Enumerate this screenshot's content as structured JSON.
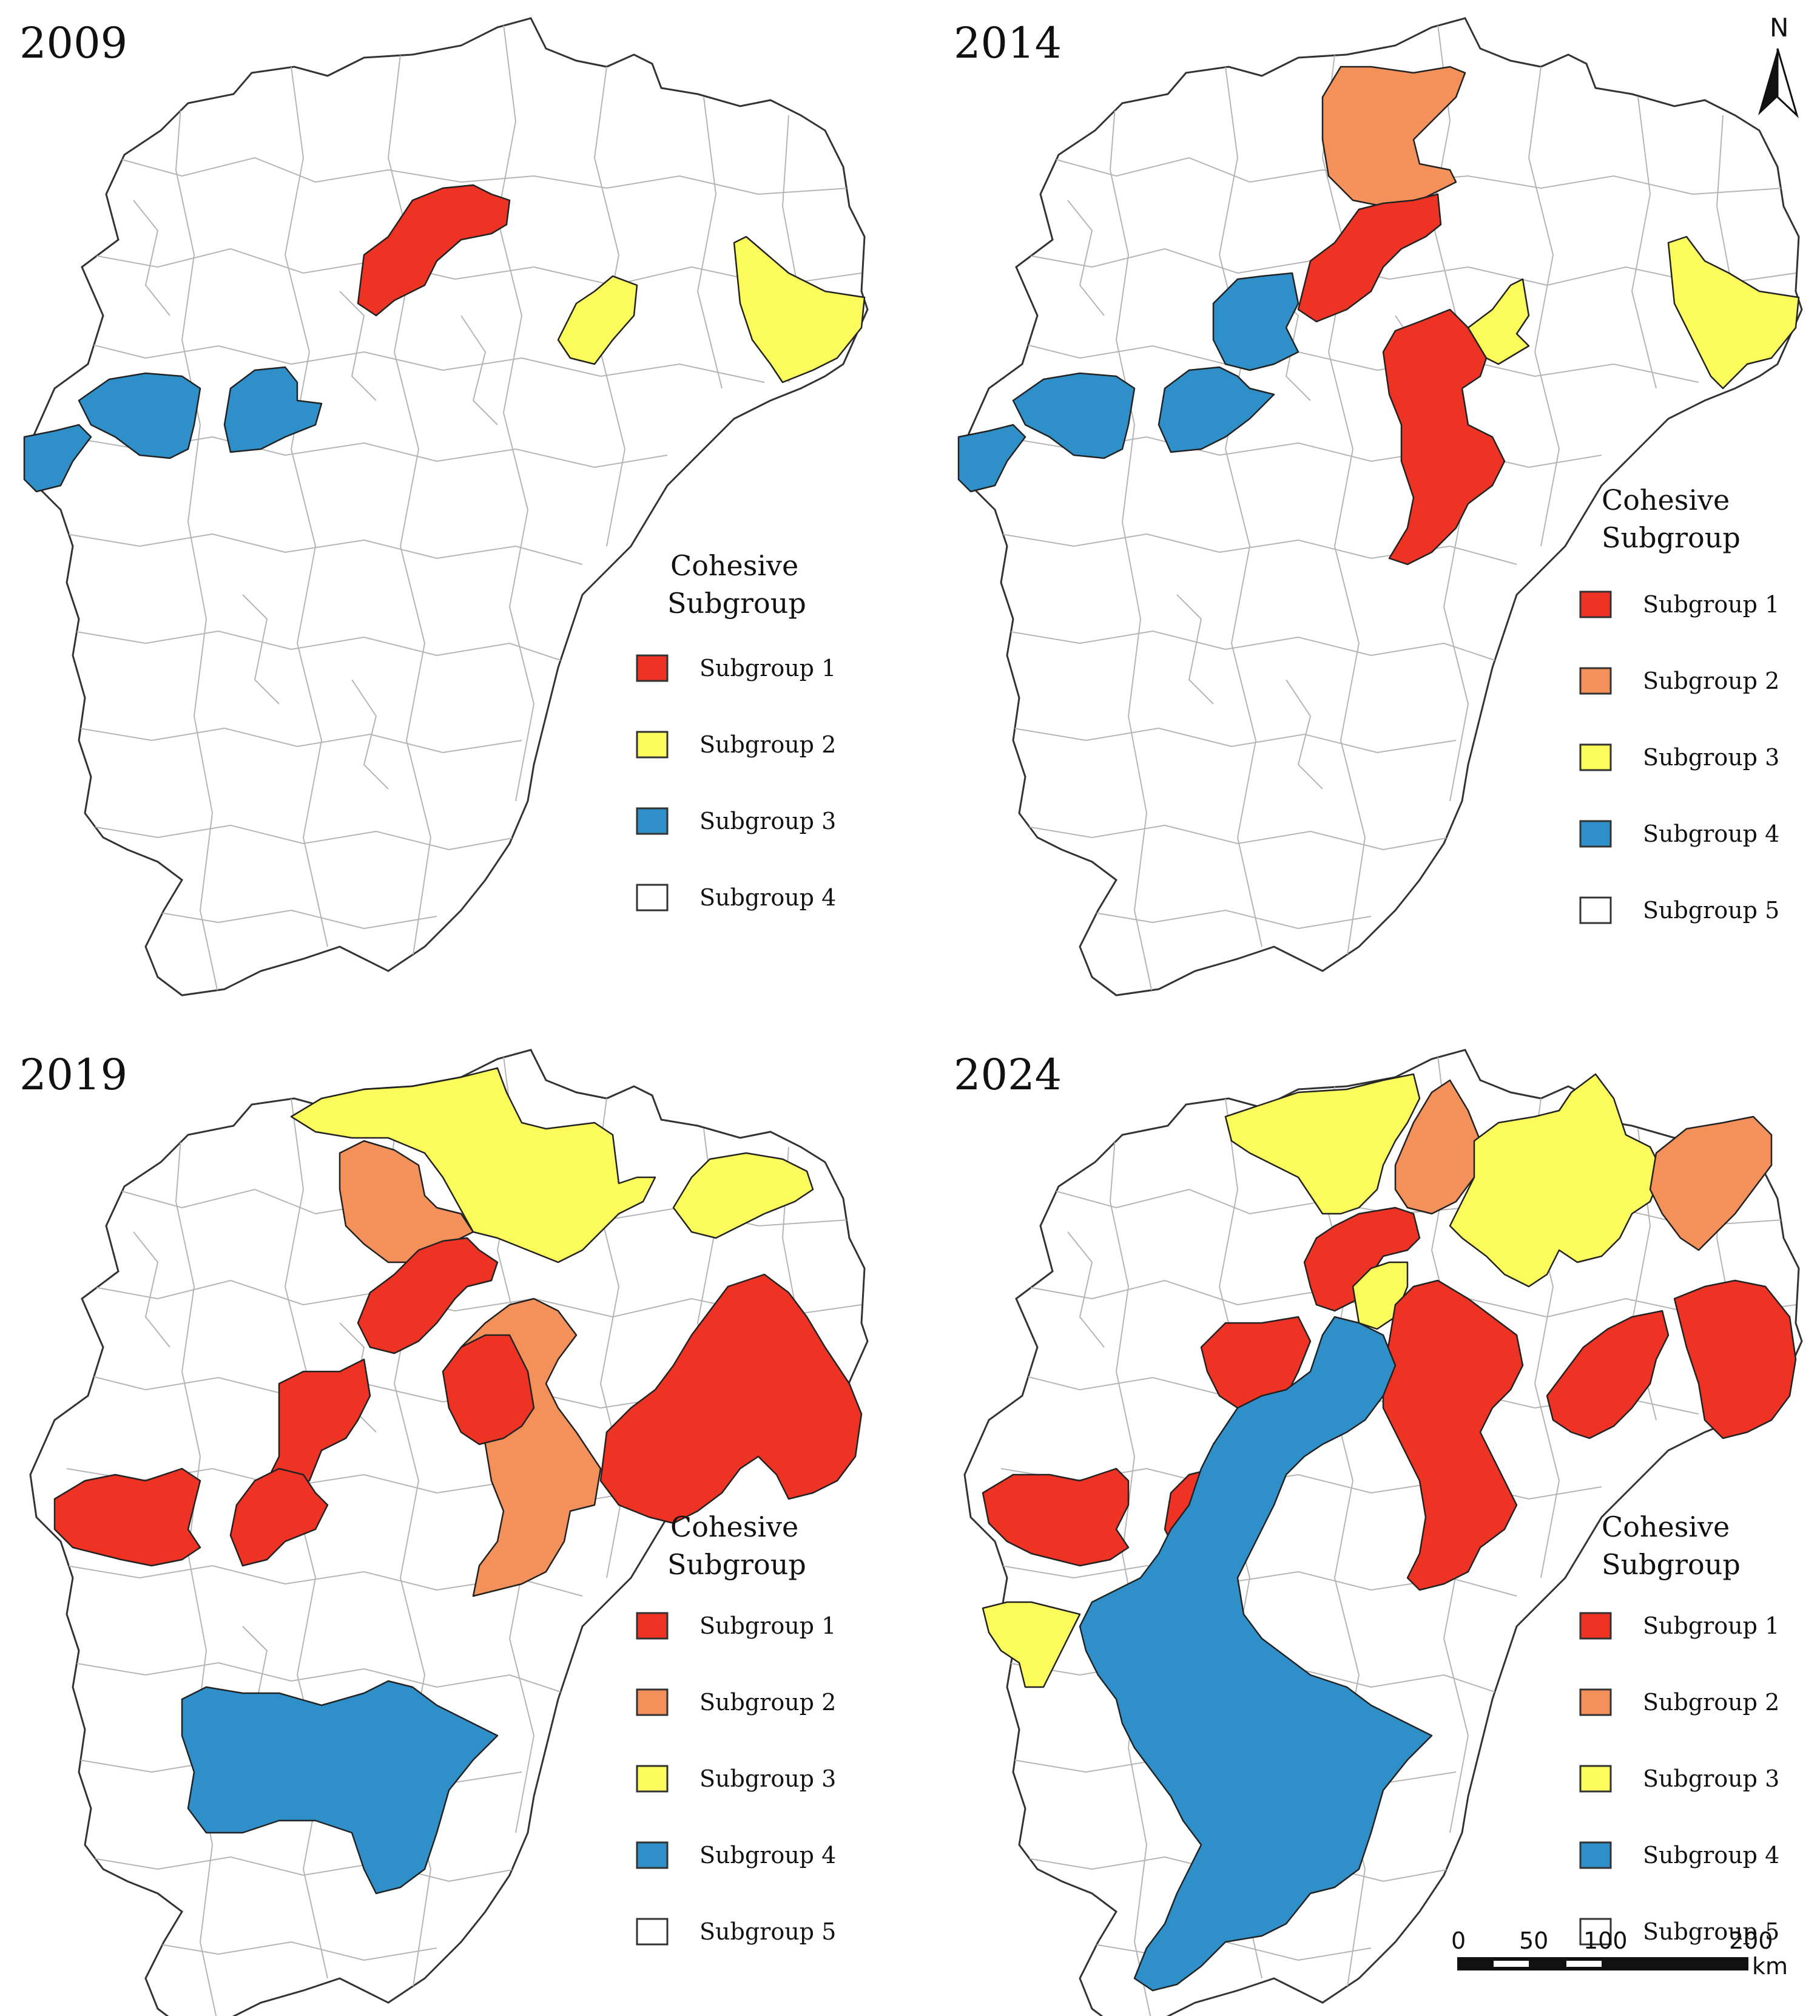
{
  "colors": {
    "subgroup_red": "#ee3224",
    "subgroup_orange": "#f4915a",
    "subgroup_yellow": "#fbfb5c",
    "subgroup_blue": "#2f90c9",
    "subgroup_white": "#ffffff"
  },
  "legend_title_line1": "Cohesive",
  "legend_title_line2": "Subgroup",
  "panels": [
    {
      "year": "2009",
      "legend": [
        {
          "label": "Subgroup 1",
          "color": "#ee3224"
        },
        {
          "label": "Subgroup 2",
          "color": "#fbfb5c"
        },
        {
          "label": "Subgroup 3",
          "color": "#2f90c9"
        },
        {
          "label": "Subgroup 4",
          "color": "#ffffff"
        }
      ]
    },
    {
      "year": "2014",
      "legend": [
        {
          "label": "Subgroup 1",
          "color": "#ee3224"
        },
        {
          "label": "Subgroup 2",
          "color": "#f4915a"
        },
        {
          "label": "Subgroup 3",
          "color": "#fbfb5c"
        },
        {
          "label": "Subgroup 4",
          "color": "#2f90c9"
        },
        {
          "label": "Subgroup 5",
          "color": "#ffffff"
        }
      ]
    },
    {
      "year": "2019",
      "legend": [
        {
          "label": "Subgroup 1",
          "color": "#ee3224"
        },
        {
          "label": "Subgroup 2",
          "color": "#f4915a"
        },
        {
          "label": "Subgroup 3",
          "color": "#fbfb5c"
        },
        {
          "label": "Subgroup 4",
          "color": "#2f90c9"
        },
        {
          "label": "Subgroup 5",
          "color": "#ffffff"
        }
      ]
    },
    {
      "year": "2024",
      "legend": [
        {
          "label": "Subgroup 1",
          "color": "#ee3224"
        },
        {
          "label": "Subgroup 2",
          "color": "#f4915a"
        },
        {
          "label": "Subgroup 3",
          "color": "#fbfb5c"
        },
        {
          "label": "Subgroup 4",
          "color": "#2f90c9"
        },
        {
          "label": "Subgroup 5",
          "color": "#ffffff"
        }
      ]
    }
  ],
  "north_arrow": {
    "label": "N"
  },
  "scale_bar": {
    "ticks": [
      "0",
      "50",
      "100",
      "200"
    ],
    "unit": "km"
  }
}
